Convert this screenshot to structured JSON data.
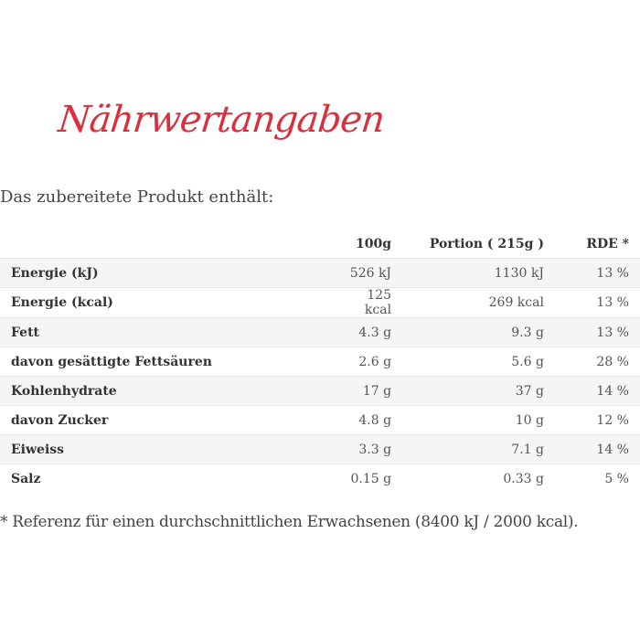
{
  "title": "Nährwertangaben",
  "intro": "Das zubereitete Produkt enthält:",
  "table": {
    "headers": [
      "",
      "100g",
      "Portion ( 215g )",
      "RDE *"
    ],
    "rows": [
      {
        "label": "Energie (kJ)",
        "per100": "526 kJ",
        "portion": "1130 kJ",
        "rde": "13 %"
      },
      {
        "label": "Energie (kcal)",
        "per100": "125 kcal",
        "portion": "269 kcal",
        "rde": "13 %"
      },
      {
        "label": "Fett",
        "per100": "4.3 g",
        "portion": "9.3 g",
        "rde": "13 %"
      },
      {
        "label": "davon gesättigte Fettsäuren",
        "per100": "2.6 g",
        "portion": "5.6 g",
        "rde": "28 %"
      },
      {
        "label": "Kohlenhydrate",
        "per100": "17 g",
        "portion": "37 g",
        "rde": "14 %"
      },
      {
        "label": "davon Zucker",
        "per100": "4.8 g",
        "portion": "10 g",
        "rde": "12 %"
      },
      {
        "label": "Eiweiss",
        "per100": "3.3 g",
        "portion": "7.1 g",
        "rde": "14 %"
      },
      {
        "label": "Salz",
        "per100": "0.15 g",
        "portion": "0.33 g",
        "rde": "5 %"
      }
    ]
  },
  "footnote": "* Referenz für einen durchschnittlichen Erwachsenen (8400 kJ / 2000 kcal).",
  "colors": {
    "title": "#d9303e",
    "row_shade": "#f5f5f5"
  }
}
